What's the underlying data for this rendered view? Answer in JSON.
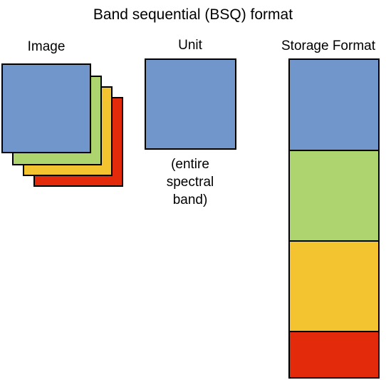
{
  "title": "Band sequential (BSQ) format",
  "image_column": {
    "heading": "Image",
    "bands": [
      {
        "color": "#E32B0C"
      },
      {
        "color": "#F3C42F"
      },
      {
        "color": "#AED470"
      },
      {
        "color": "#7196CB"
      }
    ]
  },
  "unit_column": {
    "heading": "Unit",
    "color": "#7196CB",
    "note_lines": [
      "(entire",
      "spectral",
      "band)"
    ]
  },
  "storage_column": {
    "heading": "Storage Format",
    "segments": [
      {
        "color": "#7196CB"
      },
      {
        "color": "#AED470"
      },
      {
        "color": "#F3C42F"
      },
      {
        "color": "#E32B0C"
      }
    ]
  }
}
